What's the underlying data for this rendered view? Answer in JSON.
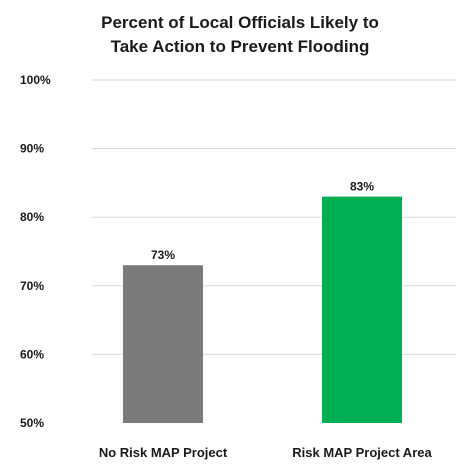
{
  "chart_data": {
    "type": "bar",
    "title_lines": [
      "Percent of Local Officials Likely to",
      "Take Action to Prevent Flooding"
    ],
    "categories": [
      "No Risk MAP Project",
      "Risk MAP Project Area"
    ],
    "values": [
      73,
      83
    ],
    "data_labels": [
      "73%",
      "83%"
    ],
    "bar_colors": [
      "#7a7a7a",
      "#00b050"
    ],
    "ylim": [
      50,
      100
    ],
    "yticks": [
      50,
      60,
      70,
      80,
      90,
      100
    ],
    "ytick_labels": [
      "50%",
      "60%",
      "70%",
      "80%",
      "90%",
      "100%"
    ],
    "grid": true,
    "legend": "none",
    "xlabel": "",
    "ylabel": ""
  }
}
